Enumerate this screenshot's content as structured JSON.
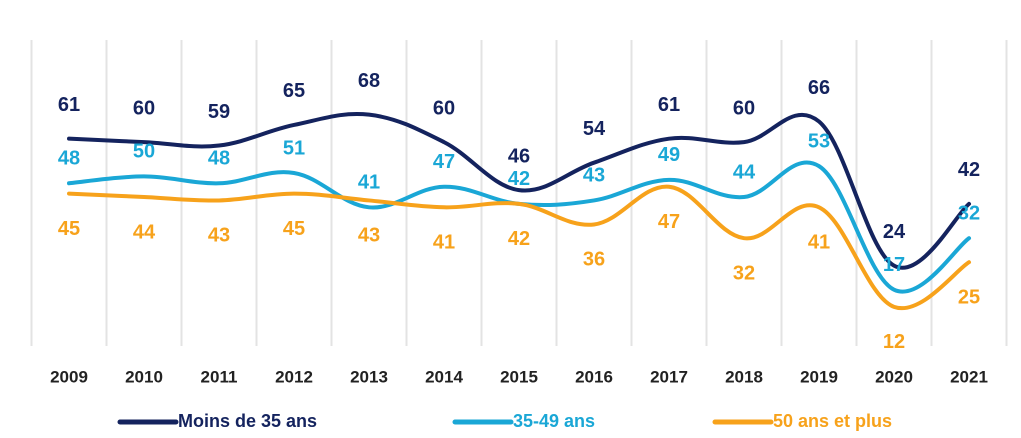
{
  "chart_data": {
    "type": "line",
    "categories": [
      "2009",
      "2010",
      "2011",
      "2012",
      "2013",
      "2014",
      "2015",
      "2016",
      "2017",
      "2018",
      "2019",
      "2020",
      "2021"
    ],
    "series": [
      {
        "name": "Moins de 35 ans",
        "color": "#14235e",
        "values": [
          61,
          60,
          59,
          65,
          68,
          60,
          46,
          54,
          61,
          60,
          66,
          24,
          42
        ]
      },
      {
        "name": "35-49 ans",
        "color": "#1aa7d6",
        "values": [
          48,
          50,
          48,
          51,
          41,
          47,
          42,
          43,
          49,
          44,
          53,
          17,
          32
        ]
      },
      {
        "name": "50 ans et plus",
        "color": "#f7a21b",
        "values": [
          45,
          44,
          43,
          45,
          43,
          41,
          42,
          36,
          47,
          32,
          41,
          12,
          25
        ]
      }
    ],
    "ylim": [
      0,
      95
    ],
    "grid": true
  }
}
